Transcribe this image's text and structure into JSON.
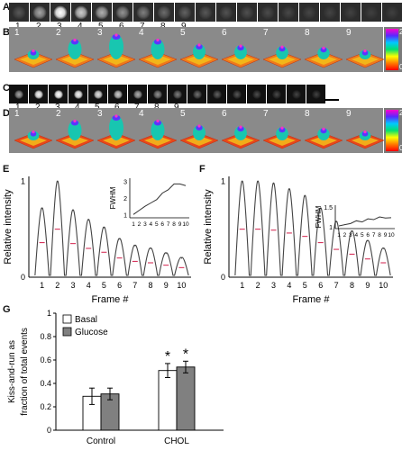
{
  "panels": {
    "a": "A",
    "b": "B",
    "c": "C",
    "d": "D",
    "e": "E",
    "f": "F",
    "g": "G"
  },
  "frame_numbers": [
    "1",
    "2",
    "3",
    "4",
    "5",
    "6",
    "7",
    "8",
    "9"
  ],
  "colorbar": {
    "max": "240",
    "min": "0"
  },
  "strip_a": [
    0.15,
    0.55,
    1.0,
    0.75,
    0.6,
    0.45,
    0.35,
    0.25,
    0.2,
    0.15,
    0.12,
    0.1,
    0.08,
    0.06,
    0.05,
    0.04,
    0.03,
    0.02,
    0.02
  ],
  "strip_c": [
    0.55,
    0.95,
    1.0,
    0.95,
    0.85,
    0.75,
    0.6,
    0.45,
    0.35,
    0.28,
    0.2,
    0.15,
    0.1,
    0.08,
    0.05,
    0.04
  ],
  "chart_data": [
    {
      "id": "E",
      "type": "line",
      "title": "",
      "xlabel": "Frame #",
      "ylabel": "Relative intensity",
      "categories": [
        "1",
        "2",
        "3",
        "4",
        "5",
        "6",
        "7",
        "8",
        "9",
        "10"
      ],
      "yticks": [
        "0",
        "1"
      ],
      "ylim": [
        0,
        1.05
      ],
      "peaks": [
        0.72,
        1.0,
        0.7,
        0.6,
        0.52,
        0.4,
        0.33,
        0.3,
        0.25,
        0.2
      ],
      "inset": {
        "ylabel": "FWHM",
        "yticks": [
          "1",
          "2",
          "3"
        ],
        "ylim": [
          0.8,
          3.2
        ],
        "xticks": [
          "1",
          "2",
          "3",
          "4",
          "5",
          "6",
          "7",
          "8",
          "9",
          "10"
        ],
        "values": [
          1.0,
          1.25,
          1.5,
          1.7,
          1.9,
          2.3,
          2.5,
          2.85,
          2.85,
          2.75
        ]
      }
    },
    {
      "id": "F",
      "type": "line",
      "title": "",
      "xlabel": "Frame #",
      "ylabel": "Relative intensity",
      "categories": [
        "1",
        "2",
        "3",
        "4",
        "5",
        "6",
        "7",
        "8",
        "9",
        "10"
      ],
      "yticks": [
        "0",
        "1"
      ],
      "ylim": [
        0,
        1.05
      ],
      "peaks": [
        1.0,
        1.0,
        0.98,
        0.92,
        0.85,
        0.72,
        0.58,
        0.48,
        0.38,
        0.3
      ],
      "inset": {
        "ylabel": "FWHM",
        "yticks": [
          "1",
          "1.5"
        ],
        "ylim": [
          0.95,
          1.55
        ],
        "xticks": [
          "1",
          "2",
          "3",
          "4",
          "5",
          "6",
          "7",
          "8",
          "9",
          "10"
        ],
        "values": [
          1.02,
          1.05,
          1.08,
          1.15,
          1.12,
          1.2,
          1.18,
          1.25,
          1.22,
          1.23
        ]
      }
    },
    {
      "id": "G",
      "type": "bar",
      "title": "",
      "xlabel": "",
      "ylabel": "Kiss-and-run as fraction of total events",
      "categories": [
        "Control",
        "CHOL"
      ],
      "series": [
        {
          "name": "Basal",
          "values": [
            0.29,
            0.51
          ],
          "errors": [
            0.07,
            0.06
          ],
          "color": "#ffffff"
        },
        {
          "name": "Glucose",
          "values": [
            0.31,
            0.54
          ],
          "errors": [
            0.05,
            0.05
          ],
          "color": "#808080"
        }
      ],
      "ylim": [
        0,
        1
      ],
      "yticks": [
        "0",
        "0.2",
        "0.4",
        "0.6",
        "0.8",
        "1"
      ],
      "significance": [
        "*",
        "*"
      ]
    }
  ]
}
